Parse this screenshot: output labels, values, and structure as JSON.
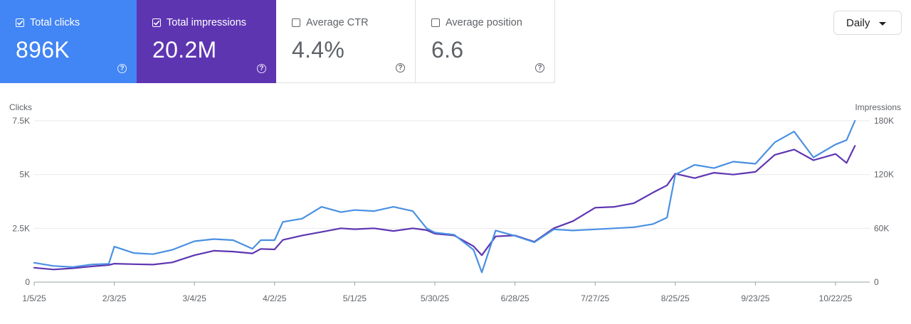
{
  "metrics": [
    {
      "label": "Total clicks",
      "value": "896K",
      "checked": true,
      "color": "#4285f4"
    },
    {
      "label": "Total impressions",
      "value": "20.2M",
      "checked": true,
      "color": "#5e35b1"
    },
    {
      "label": "Average CTR",
      "value": "4.4%",
      "checked": false
    },
    {
      "label": "Average position",
      "value": "6.6",
      "checked": false
    }
  ],
  "range_select": {
    "selected": "Daily"
  },
  "chart_data": {
    "type": "line",
    "left_axis": {
      "title": "Clicks",
      "ticks": [
        "0",
        "2.5K",
        "5K",
        "7.5K"
      ],
      "range": [
        0,
        7500
      ]
    },
    "right_axis": {
      "title": "Impressions",
      "ticks": [
        "0",
        "60K",
        "120K",
        "180K"
      ],
      "range": [
        0,
        180000
      ]
    },
    "x_ticks": [
      "1/5/25",
      "2/3/25",
      "3/4/25",
      "4/2/25",
      "5/1/25",
      "5/30/25",
      "6/28/25",
      "7/27/25",
      "8/25/25",
      "9/23/25",
      "10/22/25"
    ],
    "grid": true,
    "series": [
      {
        "name": "Total clicks",
        "axis": "left",
        "color": "#4a90e2",
        "points": [
          [
            "1/5/25",
            900
          ],
          [
            "1/12/25",
            750
          ],
          [
            "1/19/25",
            700
          ],
          [
            "1/26/25",
            820
          ],
          [
            "2/1/25",
            850
          ],
          [
            "2/3/25",
            1650
          ],
          [
            "2/10/25",
            1350
          ],
          [
            "2/17/25",
            1300
          ],
          [
            "2/24/25",
            1500
          ],
          [
            "3/1/25",
            1750
          ],
          [
            "3/4/25",
            1900
          ],
          [
            "3/11/25",
            2000
          ],
          [
            "3/18/25",
            1950
          ],
          [
            "3/25/25",
            1550
          ],
          [
            "3/28/25",
            1950
          ],
          [
            "4/2/25",
            1950
          ],
          [
            "4/5/25",
            2800
          ],
          [
            "4/12/25",
            2950
          ],
          [
            "4/19/25",
            3500
          ],
          [
            "4/26/25",
            3250
          ],
          [
            "5/1/25",
            3350
          ],
          [
            "5/8/25",
            3300
          ],
          [
            "5/15/25",
            3500
          ],
          [
            "5/22/25",
            3300
          ],
          [
            "5/27/25",
            2500
          ],
          [
            "5/30/25",
            2300
          ],
          [
            "6/6/25",
            2200
          ],
          [
            "6/13/25",
            1500
          ],
          [
            "6/16/25",
            450
          ],
          [
            "6/21/25",
            2400
          ],
          [
            "6/28/25",
            2150
          ],
          [
            "7/5/25",
            1850
          ],
          [
            "7/12/25",
            2450
          ],
          [
            "7/19/25",
            2400
          ],
          [
            "7/27/25",
            2450
          ],
          [
            "8/3/25",
            2500
          ],
          [
            "8/10/25",
            2550
          ],
          [
            "8/17/25",
            2700
          ],
          [
            "8/22/25",
            3000
          ],
          [
            "8/25/25",
            5000
          ],
          [
            "9/1/25",
            5450
          ],
          [
            "9/8/25",
            5300
          ],
          [
            "9/15/25",
            5600
          ],
          [
            "9/23/25",
            5500
          ],
          [
            "9/30/25",
            6500
          ],
          [
            "10/7/25",
            7000
          ],
          [
            "10/14/25",
            5800
          ],
          [
            "10/22/25",
            6400
          ],
          [
            "10/26/25",
            6600
          ],
          [
            "10/29/25",
            7500
          ]
        ]
      },
      {
        "name": "Total impressions",
        "axis": "right",
        "color": "#5e35b1",
        "points": [
          [
            "1/5/25",
            16000
          ],
          [
            "1/12/25",
            14000
          ],
          [
            "1/19/25",
            15500
          ],
          [
            "1/26/25",
            17500
          ],
          [
            "2/1/25",
            19000
          ],
          [
            "2/3/25",
            20500
          ],
          [
            "2/10/25",
            20000
          ],
          [
            "2/17/25",
            19500
          ],
          [
            "2/24/25",
            22000
          ],
          [
            "3/1/25",
            27000
          ],
          [
            "3/4/25",
            30000
          ],
          [
            "3/11/25",
            35000
          ],
          [
            "3/18/25",
            34000
          ],
          [
            "3/25/25",
            32000
          ],
          [
            "3/28/25",
            37000
          ],
          [
            "4/2/25",
            36500
          ],
          [
            "4/5/25",
            47000
          ],
          [
            "4/12/25",
            52000
          ],
          [
            "4/19/25",
            56000
          ],
          [
            "4/26/25",
            60000
          ],
          [
            "5/1/25",
            59000
          ],
          [
            "5/8/25",
            60000
          ],
          [
            "5/15/25",
            57000
          ],
          [
            "5/22/25",
            60000
          ],
          [
            "5/27/25",
            58000
          ],
          [
            "5/30/25",
            54000
          ],
          [
            "6/6/25",
            52000
          ],
          [
            "6/13/25",
            40000
          ],
          [
            "6/16/25",
            30000
          ],
          [
            "6/21/25",
            51000
          ],
          [
            "6/28/25",
            52000
          ],
          [
            "7/5/25",
            45000
          ],
          [
            "7/12/25",
            60000
          ],
          [
            "7/19/25",
            68000
          ],
          [
            "7/27/25",
            83000
          ],
          [
            "8/3/25",
            84000
          ],
          [
            "8/10/25",
            88000
          ],
          [
            "8/17/25",
            100000
          ],
          [
            "8/22/25",
            108000
          ],
          [
            "8/25/25",
            121000
          ],
          [
            "9/1/25",
            116000
          ],
          [
            "9/8/25",
            122000
          ],
          [
            "9/15/25",
            120000
          ],
          [
            "9/23/25",
            123000
          ],
          [
            "9/30/25",
            142000
          ],
          [
            "10/7/25",
            148000
          ],
          [
            "10/14/25",
            136000
          ],
          [
            "10/22/25",
            143000
          ],
          [
            "10/26/25",
            133000
          ],
          [
            "10/29/25",
            152000
          ]
        ]
      }
    ]
  }
}
